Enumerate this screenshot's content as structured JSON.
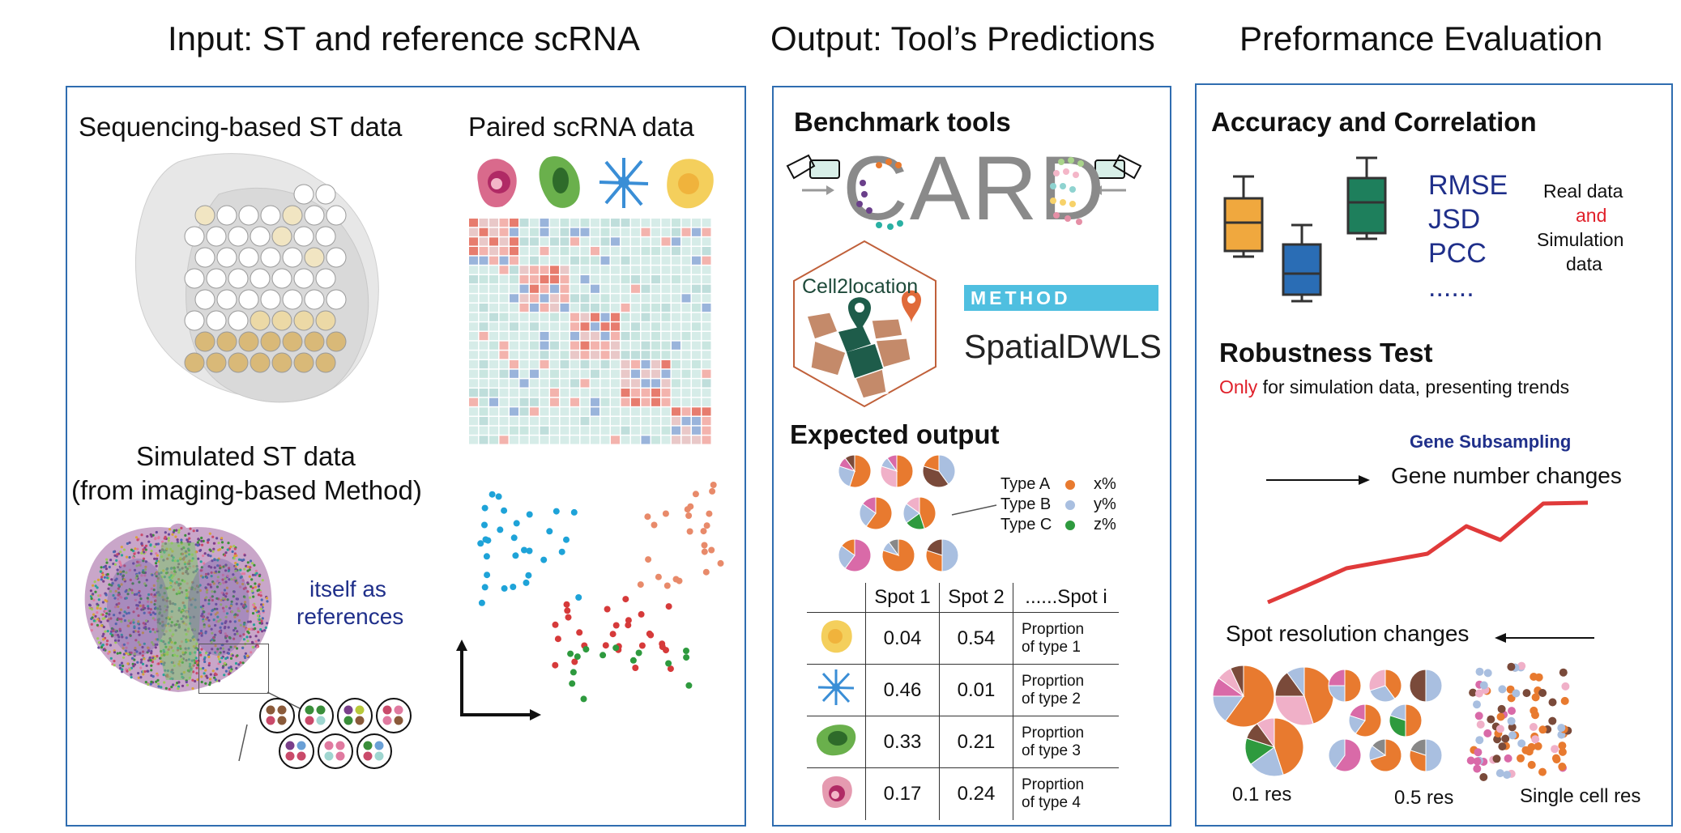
{
  "headers": {
    "input": "Input: ST and reference scRNA",
    "output": "Output: Tool’s Predictions",
    "evaluation": "Preformance Evaluation"
  },
  "input_panel": {
    "seq_st_title": "Sequencing-based ST data",
    "scrna_title": "Paired scRNA data",
    "sim_title_line1": "Simulated ST data",
    "sim_title_line2": "(from imaging-based Method)",
    "itself_line1": "itself as",
    "itself_line2": "references"
  },
  "output_panel": {
    "benchmark_title": "Benchmark tools",
    "card_logo": "CARD",
    "cell2location_logo": "Cell2location",
    "method_badge": "METHOD",
    "spatialdwls_logo": "SpatialDWLS",
    "expected_title": "Expected output",
    "legend": [
      {
        "type": "Type A",
        "value": "x%",
        "color": "#e87a2f"
      },
      {
        "type": "Type B",
        "value": "y%",
        "color": "#a9bfe0"
      },
      {
        "type": "Type C",
        "value": "z%",
        "color": "#2e9a3e"
      }
    ],
    "table": {
      "headers": [
        "Spot 1",
        "Spot 2",
        "......Spot i"
      ],
      "rows": [
        {
          "icon": "yellow-cell-icon",
          "s1": "0.04",
          "s2": "0.54",
          "label1": "Proprtion",
          "label2": "of type 1"
        },
        {
          "icon": "star-cell-icon",
          "s1": "0.46",
          "s2": "0.01",
          "label1": "Proprtion",
          "label2": "of type 2"
        },
        {
          "icon": "green-cell-icon",
          "s1": "0.33",
          "s2": "0.21",
          "label1": "Proprtion",
          "label2": "of type 3"
        },
        {
          "icon": "pink-cell-icon",
          "s1": "0.17",
          "s2": "0.24",
          "label1": "Proprtion",
          "label2": "of type 4"
        }
      ]
    }
  },
  "eval_panel": {
    "accuracy_title": "Accuracy and Correlation",
    "metrics": [
      "RMSE",
      "JSD",
      "PCC",
      "......"
    ],
    "real_data": "Real data",
    "and": "and",
    "simulation": "Simulation",
    "data": "data",
    "robustness_title": "Robustness Test",
    "only": "Only",
    "robustness_note": " for simulation data, presenting trends",
    "gene_subsampling": "Gene Subsampling",
    "gene_number": "Gene number changes",
    "spot_resolution": "Spot resolution changes",
    "res_labels": [
      "0.1 res",
      "0.5 res",
      "Single cell res"
    ],
    "colors": {
      "accent_red": "#e0202a",
      "navy": "#1f2f8a",
      "boxes": [
        "#f0a83e",
        "#2a6db5",
        "#1e7f5c"
      ]
    }
  }
}
